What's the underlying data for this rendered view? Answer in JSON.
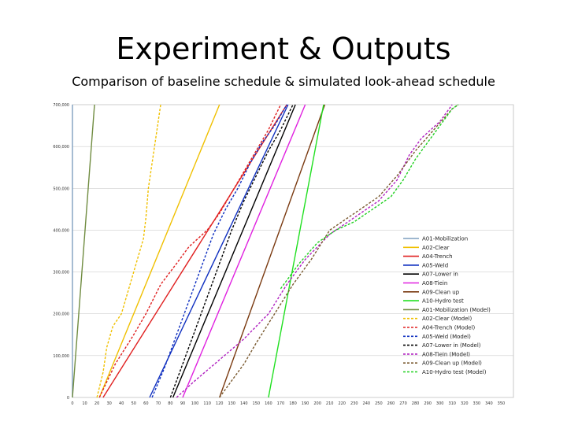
{
  "title": "Experiment & Outputs",
  "subtitle": "Comparison of baseline schedule & simulated look-ahead schedule",
  "chart_data": {
    "type": "line",
    "xlim": [
      0,
      360
    ],
    "ylim": [
      0,
      700000
    ],
    "x_ticks": [
      0,
      10,
      20,
      30,
      40,
      50,
      60,
      70,
      80,
      90,
      100,
      110,
      120,
      130,
      140,
      150,
      160,
      170,
      180,
      190,
      200,
      210,
      220,
      230,
      240,
      250,
      260,
      270,
      280,
      290,
      300,
      310,
      320,
      330,
      340,
      350
    ],
    "y_ticks": [
      {
        "value": 0,
        "label": "0"
      },
      {
        "value": 100000,
        "label": "100,000"
      },
      {
        "value": 200000,
        "label": "200,000"
      },
      {
        "value": 300000,
        "label": "300,000"
      },
      {
        "value": 400000,
        "label": "400,000"
      },
      {
        "value": 500000,
        "label": "500,000"
      },
      {
        "value": 600000,
        "label": "600,000"
      },
      {
        "value": 700000,
        "label": "700,000"
      }
    ],
    "grid": true,
    "legend_position": "right",
    "series": [
      {
        "name": "A01-Mobilization",
        "color": "#7f9fbf",
        "dash": false,
        "points": [
          [
            0,
            0
          ],
          [
            0,
            700000
          ]
        ]
      },
      {
        "name": "A02-Clear",
        "color": "#f0c000",
        "dash": false,
        "points": [
          [
            22,
            0
          ],
          [
            120,
            700000
          ]
        ]
      },
      {
        "name": "A04-Trench",
        "color": "#e02020",
        "dash": false,
        "points": [
          [
            25,
            0
          ],
          [
            175,
            700000
          ]
        ]
      },
      {
        "name": "A05-Weld",
        "color": "#1030c0",
        "dash": false,
        "points": [
          [
            63,
            0
          ],
          [
            176,
            700000
          ]
        ]
      },
      {
        "name": "A07-Lower in",
        "color": "#000000",
        "dash": false,
        "points": [
          [
            82,
            0
          ],
          [
            182,
            700000
          ]
        ]
      },
      {
        "name": "A08-Tiein",
        "color": "#e020e0",
        "dash": false,
        "points": [
          [
            90,
            0
          ],
          [
            190,
            700000
          ]
        ]
      },
      {
        "name": "A09-Clean up",
        "color": "#7a3a10",
        "dash": false,
        "points": [
          [
            120,
            0
          ],
          [
            206,
            700000
          ]
        ]
      },
      {
        "name": "A10-Hydro test",
        "color": "#20e020",
        "dash": false,
        "points": [
          [
            160,
            0
          ],
          [
            205,
            700000
          ]
        ]
      },
      {
        "name": "A01-Mobilization (Model)",
        "color": "#708c40",
        "dash": false,
        "points": [
          [
            0,
            0
          ],
          [
            18,
            700000
          ]
        ]
      },
      {
        "name": "A02-Clear (Model)",
        "color": "#f0c000",
        "dash": true,
        "points": [
          [
            20,
            0
          ],
          [
            25,
            60000
          ],
          [
            28,
            120000
          ],
          [
            33,
            170000
          ],
          [
            40,
            200000
          ],
          [
            45,
            250000
          ],
          [
            52,
            320000
          ],
          [
            58,
            380000
          ],
          [
            60,
            430000
          ],
          [
            62,
            500000
          ],
          [
            65,
            560000
          ],
          [
            68,
            620000
          ],
          [
            70,
            660000
          ],
          [
            72,
            700000
          ]
        ]
      },
      {
        "name": "A04-Trench (Model)",
        "color": "#e02020",
        "dash": true,
        "points": [
          [
            22,
            0
          ],
          [
            35,
            80000
          ],
          [
            50,
            150000
          ],
          [
            60,
            200000
          ],
          [
            72,
            270000
          ],
          [
            85,
            320000
          ],
          [
            95,
            360000
          ],
          [
            110,
            400000
          ],
          [
            120,
            440000
          ],
          [
            130,
            490000
          ],
          [
            140,
            540000
          ],
          [
            150,
            590000
          ],
          [
            160,
            640000
          ],
          [
            170,
            700000
          ]
        ]
      },
      {
        "name": "A05-Weld (Model)",
        "color": "#1030c0",
        "dash": true,
        "points": [
          [
            65,
            0
          ],
          [
            75,
            70000
          ],
          [
            85,
            150000
          ],
          [
            95,
            230000
          ],
          [
            105,
            310000
          ],
          [
            115,
            390000
          ],
          [
            125,
            450000
          ],
          [
            135,
            500000
          ],
          [
            145,
            560000
          ],
          [
            155,
            610000
          ],
          [
            165,
            650000
          ],
          [
            175,
            700000
          ]
        ]
      },
      {
        "name": "A07-Lower in (Model)",
        "color": "#000000",
        "dash": true,
        "points": [
          [
            80,
            0
          ],
          [
            90,
            80000
          ],
          [
            100,
            160000
          ],
          [
            110,
            240000
          ],
          [
            120,
            320000
          ],
          [
            130,
            400000
          ],
          [
            140,
            470000
          ],
          [
            150,
            530000
          ],
          [
            160,
            590000
          ],
          [
            170,
            640000
          ],
          [
            180,
            700000
          ]
        ]
      },
      {
        "name": "A08-Tiein (Model)",
        "color": "#b020c0",
        "dash": true,
        "points": [
          [
            85,
            0
          ],
          [
            100,
            40000
          ],
          [
            120,
            90000
          ],
          [
            140,
            140000
          ],
          [
            160,
            200000
          ],
          [
            175,
            270000
          ],
          [
            190,
            330000
          ],
          [
            210,
            390000
          ],
          [
            230,
            430000
          ],
          [
            250,
            470000
          ],
          [
            265,
            520000
          ],
          [
            275,
            580000
          ],
          [
            285,
            620000
          ],
          [
            300,
            660000
          ],
          [
            310,
            700000
          ]
        ]
      },
      {
        "name": "A09-Clean up (Model)",
        "color": "#7a5a30",
        "dash": true,
        "points": [
          [
            120,
            0
          ],
          [
            130,
            40000
          ],
          [
            140,
            80000
          ],
          [
            150,
            130000
          ],
          [
            165,
            200000
          ],
          [
            180,
            270000
          ],
          [
            195,
            330000
          ],
          [
            210,
            400000
          ],
          [
            230,
            440000
          ],
          [
            250,
            480000
          ],
          [
            265,
            530000
          ],
          [
            280,
            590000
          ],
          [
            295,
            640000
          ],
          [
            310,
            690000
          ],
          [
            315,
            700000
          ]
        ]
      },
      {
        "name": "A10-Hydro test (Model)",
        "color": "#20d020",
        "dash": true,
        "points": [
          [
            170,
            260000
          ],
          [
            185,
            320000
          ],
          [
            200,
            370000
          ],
          [
            215,
            400000
          ],
          [
            230,
            420000
          ],
          [
            245,
            450000
          ],
          [
            260,
            480000
          ],
          [
            270,
            520000
          ],
          [
            280,
            570000
          ],
          [
            290,
            610000
          ],
          [
            300,
            650000
          ],
          [
            310,
            690000
          ],
          [
            315,
            700000
          ]
        ]
      }
    ]
  }
}
